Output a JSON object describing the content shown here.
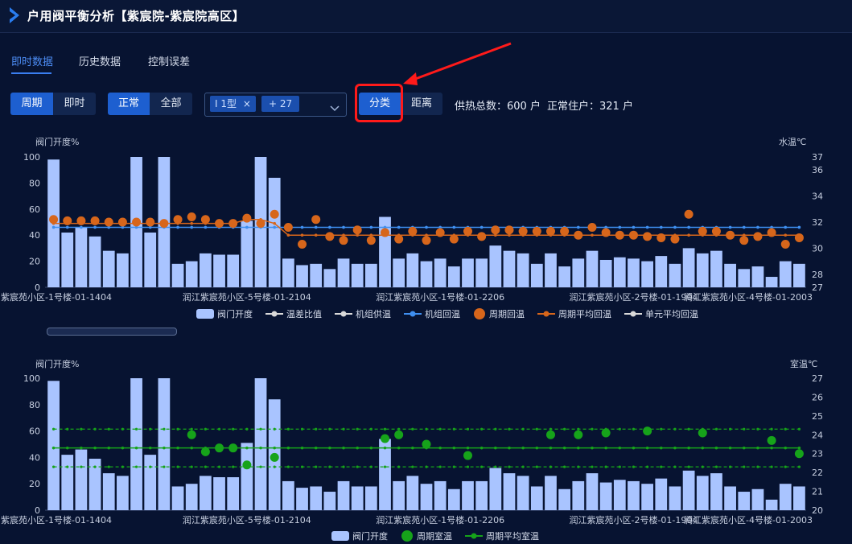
{
  "header": {
    "title": "户用阀平衡分析【紫宸院-紫宸院高区】"
  },
  "tabs": [
    {
      "label": "即时数据",
      "active": true
    },
    {
      "label": "历史数据",
      "active": false
    },
    {
      "label": "控制误差",
      "active": false
    }
  ],
  "toolbar": {
    "period_group": [
      {
        "label": "周期",
        "active": true
      },
      {
        "label": "即时",
        "active": false
      }
    ],
    "filter_group": [
      {
        "label": "正常",
        "active": true
      },
      {
        "label": "全部",
        "active": false
      }
    ],
    "select": {
      "tag1": "I 1型",
      "tag1_close": "×",
      "tag2": "+ 27"
    },
    "sort_group": [
      {
        "label": "分类",
        "active": true
      },
      {
        "label": "距离",
        "active": false
      }
    ],
    "info_total": "供热总数：600 户",
    "info_normal": "正常住户：321 户"
  },
  "colors": {
    "accent": "#1d5fd0",
    "bar": "#a9c4ff",
    "orange": "#d7661b",
    "blue_line": "#3f8ff0",
    "green": "#16a31a",
    "highlight": "#ff1a1a"
  },
  "chart_data": [
    {
      "type": "bar",
      "left_axis_title": "阀门开度%",
      "right_axis_title": "水温℃",
      "ylim": [
        0,
        100
      ],
      "y2lim": [
        27,
        37
      ],
      "y_ticks": [
        0,
        20,
        40,
        60,
        80,
        100
      ],
      "y2_ticks": [
        27,
        28,
        30,
        32,
        34,
        36,
        37
      ],
      "x_tick_labels": [
        "紫宸苑小区-1号楼-01-1404",
        "润江紫宸苑小区-5号楼-01-2104",
        "润江紫宸苑小区-1号楼-01-2206",
        "润江紫宸苑小区-2号楼-01-1904",
        "润江紫宸苑小区-4号楼-01-2003"
      ],
      "legend": [
        "阀门开度",
        "温差比值",
        "机组供温",
        "机组回温",
        "周期回温",
        "周期平均回温",
        "单元平均回温"
      ],
      "series": [
        {
          "name": "阀门开度",
          "type": "bar",
          "values": [
            98,
            42,
            46,
            39,
            28,
            26,
            100,
            42,
            100,
            18,
            20,
            26,
            25,
            25,
            51,
            100,
            84,
            22,
            17,
            18,
            14,
            22,
            18,
            18,
            54,
            22,
            26,
            20,
            22,
            16,
            22,
            22,
            32,
            28,
            26,
            18,
            26,
            16,
            22,
            28,
            21,
            23,
            22,
            20,
            24,
            18,
            30,
            26,
            28,
            18,
            14,
            16,
            8,
            20,
            18
          ]
        },
        {
          "name": "周期回温",
          "type": "scatter",
          "values": [
            32.2,
            32.1,
            32.1,
            32.1,
            32.0,
            32.0,
            32.0,
            32.0,
            31.9,
            32.2,
            32.4,
            32.2,
            31.9,
            31.9,
            32.3,
            31.9,
            32.6,
            31.6,
            30.3,
            32.2,
            30.9,
            30.6,
            31.4,
            30.6,
            31.2,
            30.7,
            31.3,
            30.6,
            31.2,
            30.7,
            31.3,
            30.9,
            31.4,
            31.4,
            31.3,
            31.3,
            31.3,
            31.3,
            31.0,
            31.6,
            31.2,
            31.0,
            31.0,
            30.9,
            30.8,
            30.7,
            32.6,
            31.3,
            31.3,
            31.0,
            30.6,
            30.9,
            31.2,
            30.3,
            30.8
          ]
        },
        {
          "name": "周期平均回温",
          "type": "line",
          "values": [
            31.9,
            31.9,
            31.9,
            31.9,
            31.9,
            31.9,
            31.9,
            31.9,
            31.9,
            31.9,
            31.9,
            31.9,
            31.9,
            31.9,
            32.2,
            32.2,
            31.9,
            31.0,
            31.0,
            31.0,
            31.0,
            31.0,
            31.0,
            31.0,
            31.0,
            31.0,
            31.0,
            31.0,
            31.0,
            31.0,
            31.0,
            31.0,
            31.0,
            31.0,
            31.0,
            31.0,
            31.0,
            31.0,
            31.0,
            31.0,
            31.0,
            31.0,
            31.0,
            31.0,
            31.0,
            31.0,
            31.0,
            31.0,
            31.0,
            31.0,
            31.0,
            31.0,
            31.0,
            31.0,
            31.0
          ]
        },
        {
          "name": "机组回温",
          "type": "line",
          "values": [
            31.6
          ]
        }
      ]
    },
    {
      "type": "bar",
      "left_axis_title": "阀门开度%",
      "right_axis_title": "室温℃",
      "ylim": [
        0,
        100
      ],
      "y2lim": [
        20,
        27
      ],
      "y_ticks": [
        0,
        20,
        40,
        60,
        80,
        100
      ],
      "y2_ticks": [
        20,
        21,
        22,
        23,
        24,
        25,
        26,
        27
      ],
      "x_tick_labels": [
        "紫宸苑小区-1号楼-01-1404",
        "润江紫宸苑小区-5号楼-01-2104",
        "润江紫宸苑小区-1号楼-01-2206",
        "润江紫宸苑小区-2号楼-01-1904",
        "润江紫宸苑小区-4号楼-01-2003"
      ],
      "legend": [
        "阀门开度",
        "周期室温",
        "周期平均室温"
      ],
      "series": [
        {
          "name": "阀门开度",
          "type": "bar",
          "values": [
            98,
            42,
            46,
            39,
            28,
            26,
            100,
            42,
            100,
            18,
            20,
            26,
            25,
            25,
            51,
            100,
            84,
            22,
            17,
            18,
            14,
            22,
            18,
            18,
            54,
            22,
            26,
            20,
            22,
            16,
            22,
            22,
            32,
            28,
            26,
            18,
            26,
            16,
            22,
            28,
            21,
            23,
            22,
            20,
            24,
            18,
            30,
            26,
            28,
            18,
            14,
            16,
            8,
            20,
            18
          ]
        },
        {
          "name": "周期室温",
          "type": "scatter",
          "points": [
            [
              10,
              24.0
            ],
            [
              11,
              23.1
            ],
            [
              12,
              23.3
            ],
            [
              13,
              23.3
            ],
            [
              14,
              22.4
            ],
            [
              16,
              22.8
            ],
            [
              24,
              23.8
            ],
            [
              25,
              24.0
            ],
            [
              27,
              23.5
            ],
            [
              30,
              22.9
            ],
            [
              36,
              24.0
            ],
            [
              38,
              24.0
            ],
            [
              40,
              24.1
            ],
            [
              43,
              24.2
            ],
            [
              47,
              24.1
            ],
            [
              52,
              23.7
            ],
            [
              54,
              23.0
            ]
          ]
        },
        {
          "name": "周期平均室温",
          "type": "line",
          "value": 23.3
        },
        {
          "name": "upper_band",
          "type": "line",
          "value": 24.3
        },
        {
          "name": "lower_band",
          "type": "line",
          "value": 22.3
        }
      ]
    }
  ]
}
